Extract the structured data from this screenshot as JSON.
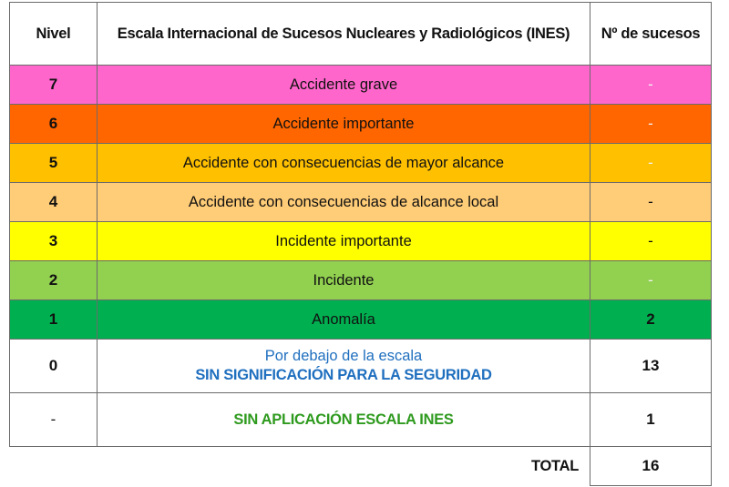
{
  "header": {
    "level": "Nivel",
    "scale": "Escala Internacional de Sucesos Nucleares y Radiológicos (INES)",
    "count": "Nº de sucesos"
  },
  "rows": [
    {
      "level": "7",
      "label": "Accidente grave",
      "count": "-",
      "color": "#ff66cc"
    },
    {
      "level": "6",
      "label": "Accidente importante",
      "count": "-",
      "color": "#ff6600"
    },
    {
      "level": "5",
      "label": "Accidente con consecuencias de mayor alcance",
      "count": "-",
      "color": "#ffc000"
    },
    {
      "level": "4",
      "label": "Accidente con consecuencias de alcance local",
      "count": "-",
      "color": "#ffcc77"
    },
    {
      "level": "3",
      "label": "Incidente importante",
      "count": "-",
      "color": "#ffff00"
    },
    {
      "level": "2",
      "label": "Incidente",
      "count": "-",
      "color": "#92d050"
    },
    {
      "level": "1",
      "label": "Anomalía",
      "count": "2",
      "color": "#00b050"
    }
  ],
  "below_scale": {
    "level": "0",
    "line1": "Por debajo de la escala",
    "line2": "SIN SIGNIFICACIÓN PARA LA SEGURIDAD",
    "count": "13",
    "color": "#1f6fbf"
  },
  "not_applicable": {
    "level": "-",
    "label": "SIN APLICACIÓN ESCALA INES",
    "count": "1",
    "color": "#2e9a1e"
  },
  "total": {
    "label": "TOTAL",
    "value": "16"
  }
}
